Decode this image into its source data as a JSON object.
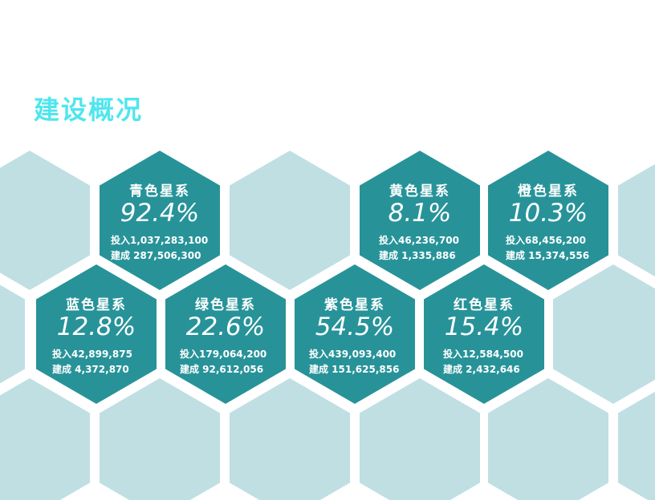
{
  "title": "建设概况",
  "colors": {
    "title": "#4fe6ee",
    "dark_hex": "#279399",
    "light_hex": "#bfdfe3"
  },
  "cards": [
    {
      "name": "青色星系",
      "percent": "92.4%",
      "invest": "投入1,037,283,100",
      "built": "建成 287,506,300"
    },
    {
      "name": "黄色星系",
      "percent": "8.1%",
      "invest": "投入46,236,700",
      "built": "建成 1,335,886"
    },
    {
      "name": "橙色星系",
      "percent": "10.3%",
      "invest": "投入68,456,200",
      "built": "建成 15,374,556"
    },
    {
      "name": "蓝色星系",
      "percent": "12.8%",
      "invest": "投入42,899,875",
      "built": "建成 4,372,870"
    },
    {
      "name": "绿色星系",
      "percent": "22.6%",
      "invest": "投入179,064,200",
      "built": "建成 92,612,056"
    },
    {
      "name": "紫色星系",
      "percent": "54.5%",
      "invest": "投入439,093,400",
      "built": "建成 151,625,856"
    },
    {
      "name": "红色星系",
      "percent": "15.4%",
      "invest": "投入12,584,500",
      "built": "建成 2,432,646"
    }
  ]
}
